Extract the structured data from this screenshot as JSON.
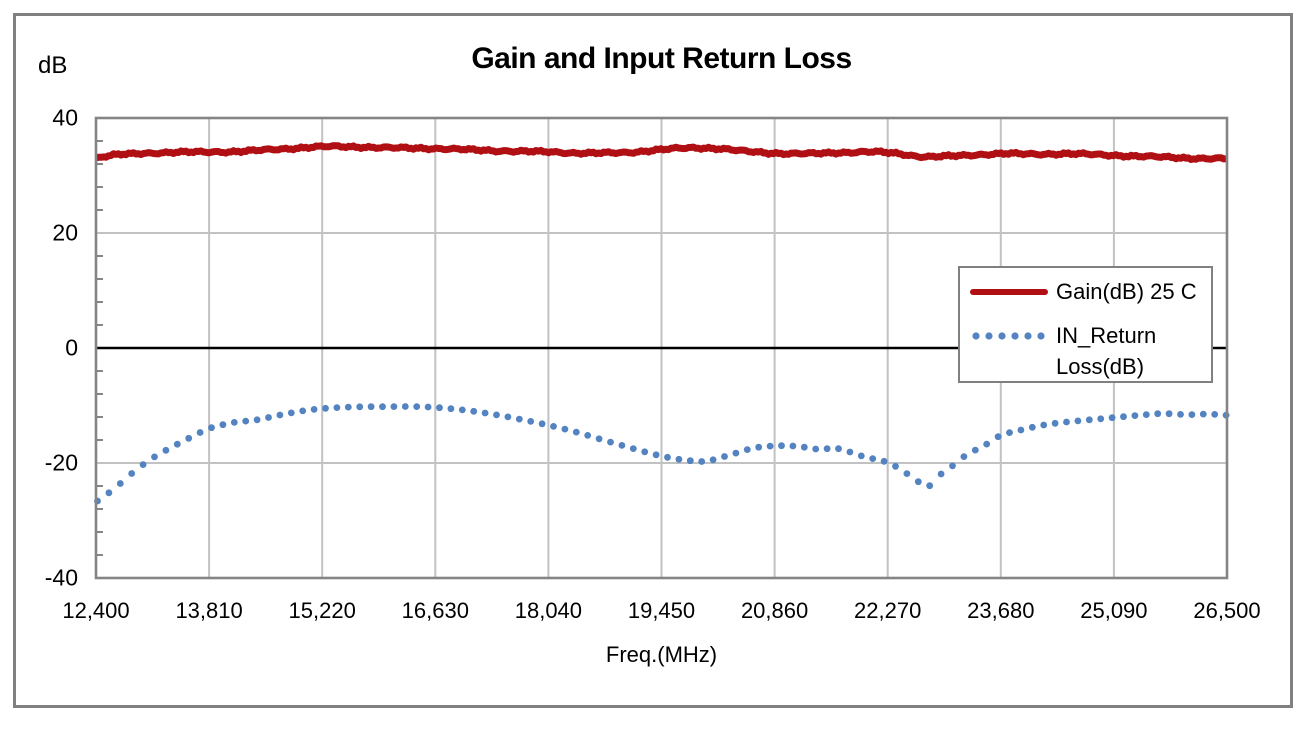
{
  "colors": {
    "gain_series": "#b00f13",
    "return_loss_series": "#5383c0",
    "grid_major": "#c2c2c2",
    "axis_frame": "#858585",
    "zero_line": "#000000",
    "text": "#000000",
    "legend_border": "#808080",
    "outer_frame": "#808080",
    "background": "#ffffff"
  },
  "chart_data": {
    "type": "line",
    "title": "Gain and Input Return Loss",
    "ylabel": "dB",
    "xlabel": "Freq.(MHz)",
    "xlim": [
      12400,
      26500
    ],
    "ylim": [
      -40,
      40
    ],
    "x_tick_values": [
      12400,
      13810,
      15220,
      16630,
      18040,
      19450,
      20860,
      22270,
      23680,
      25090,
      26500
    ],
    "x_tick_labels": [
      "12,400",
      "13,810",
      "15,220",
      "16,630",
      "18,040",
      "19,450",
      "20,860",
      "22,270",
      "23,680",
      "25,090",
      "26,500"
    ],
    "y_tick_values": [
      40,
      20,
      0,
      -20,
      -40
    ],
    "y_tick_labels": [
      "40",
      "20",
      "0",
      "-20",
      "-40"
    ],
    "y_minor_tick_step": 4,
    "grid": "major vertical and horizontal gridlines, zero line emphasized in black",
    "legend_position": "overlay-right-center",
    "series": [
      {
        "name": "Gain(dB) 25 C",
        "style": "solid-thick",
        "color": "#b00f13",
        "points": [
          [
            12400,
            33.0
          ],
          [
            12600,
            33.5
          ],
          [
            12900,
            33.8
          ],
          [
            13300,
            34.0
          ],
          [
            13810,
            34.1
          ],
          [
            14200,
            34.2
          ],
          [
            14700,
            34.6
          ],
          [
            15220,
            35.0
          ],
          [
            15600,
            35.0
          ],
          [
            16100,
            34.8
          ],
          [
            16630,
            34.7
          ],
          [
            17200,
            34.4
          ],
          [
            17700,
            34.2
          ],
          [
            18040,
            34.1
          ],
          [
            18500,
            33.9
          ],
          [
            19000,
            34.0
          ],
          [
            19450,
            34.5
          ],
          [
            19800,
            34.8
          ],
          [
            20150,
            34.7
          ],
          [
            20500,
            34.2
          ],
          [
            20860,
            33.9
          ],
          [
            21300,
            33.8
          ],
          [
            21700,
            34.0
          ],
          [
            22100,
            34.1
          ],
          [
            22400,
            33.8
          ],
          [
            22700,
            33.3
          ],
          [
            23100,
            33.4
          ],
          [
            23680,
            33.8
          ],
          [
            24100,
            33.7
          ],
          [
            24500,
            33.8
          ],
          [
            24900,
            33.6
          ],
          [
            25300,
            33.4
          ],
          [
            25700,
            33.2
          ],
          [
            26100,
            33.0
          ],
          [
            26500,
            32.9
          ]
        ]
      },
      {
        "name": "IN_Return Loss(dB)",
        "style": "dotted",
        "color": "#5383c0",
        "points": [
          [
            12400,
            -26.8
          ],
          [
            12550,
            -25.3
          ],
          [
            12700,
            -23.6
          ],
          [
            12900,
            -21.2
          ],
          [
            13100,
            -19.2
          ],
          [
            13350,
            -17.2
          ],
          [
            13600,
            -15.4
          ],
          [
            13810,
            -14.0
          ],
          [
            14100,
            -13.0
          ],
          [
            14400,
            -12.5
          ],
          [
            14750,
            -11.5
          ],
          [
            15100,
            -10.7
          ],
          [
            15500,
            -10.3
          ],
          [
            16000,
            -10.2
          ],
          [
            16400,
            -10.2
          ],
          [
            16700,
            -10.4
          ],
          [
            17100,
            -11.0
          ],
          [
            17500,
            -11.9
          ],
          [
            17900,
            -13.0
          ],
          [
            18300,
            -14.3
          ],
          [
            18700,
            -15.9
          ],
          [
            19100,
            -17.5
          ],
          [
            19450,
            -18.8
          ],
          [
            19750,
            -19.5
          ],
          [
            20000,
            -19.7
          ],
          [
            20300,
            -18.6
          ],
          [
            20600,
            -17.4
          ],
          [
            20900,
            -17.0
          ],
          [
            21150,
            -17.1
          ],
          [
            21400,
            -17.6
          ],
          [
            21650,
            -17.5
          ],
          [
            21950,
            -18.8
          ],
          [
            22270,
            -19.9
          ],
          [
            22450,
            -21.3
          ],
          [
            22620,
            -22.9
          ],
          [
            22760,
            -24.2
          ],
          [
            22900,
            -22.3
          ],
          [
            23050,
            -20.8
          ],
          [
            23250,
            -18.6
          ],
          [
            23470,
            -17.0
          ],
          [
            23680,
            -15.2
          ],
          [
            23950,
            -14.2
          ],
          [
            24250,
            -13.3
          ],
          [
            24550,
            -12.8
          ],
          [
            24850,
            -12.4
          ],
          [
            25090,
            -12.1
          ],
          [
            25400,
            -11.7
          ],
          [
            25700,
            -11.4
          ],
          [
            26000,
            -11.6
          ],
          [
            26250,
            -11.5
          ],
          [
            26500,
            -11.7
          ]
        ]
      }
    ]
  },
  "legend": {
    "items": [
      {
        "label": "Gain(dB) 25 C"
      },
      {
        "label": "IN_Return Loss(dB)"
      }
    ]
  }
}
